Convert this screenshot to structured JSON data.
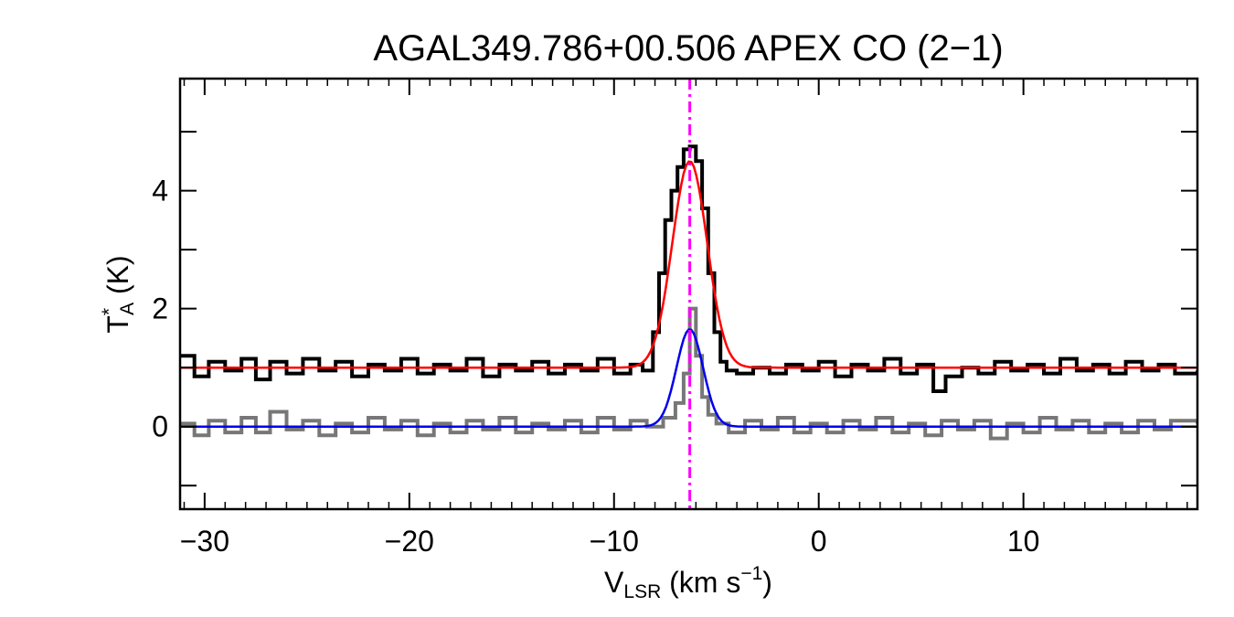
{
  "chart_data": {
    "type": "line",
    "title": "AGAL349.786+00.506  APEX CO (2−1)",
    "xlabel": {
      "main": "V",
      "sub": "LSR",
      "units_pre": " (km s",
      "sup": "−1",
      "units_post": ")"
    },
    "ylabel": {
      "main": "T",
      "sup": "*",
      "sub": "A",
      "units": " (K)"
    },
    "xlim": [
      -31.2,
      18.5
    ],
    "ylim": [
      -1.4,
      5.9
    ],
    "xticks": [
      {
        "value": -30,
        "label": "−30"
      },
      {
        "value": -20,
        "label": "−20"
      },
      {
        "value": -10,
        "label": "−10"
      },
      {
        "value": 0,
        "label": "0"
      },
      {
        "value": 10,
        "label": "10"
      }
    ],
    "yticks": [
      {
        "value": 0,
        "label": "0"
      },
      {
        "value": 2,
        "label": "2"
      },
      {
        "value": 4,
        "label": "4"
      }
    ],
    "grid": false,
    "vline": {
      "x": -6.3,
      "color": "#ff00ff",
      "style": "dash-dot"
    },
    "series": [
      {
        "role": "CO (2-1) spectrum, offset +1 K",
        "color": "#000000",
        "style": "steps",
        "width": 4,
        "points": [
          [
            -31.2,
            1.2
          ],
          [
            -30.5,
            0.85
          ],
          [
            -29.8,
            1.1
          ],
          [
            -29.0,
            0.95
          ],
          [
            -28.2,
            1.15
          ],
          [
            -27.5,
            0.8
          ],
          [
            -26.8,
            1.1
          ],
          [
            -26.0,
            0.9
          ],
          [
            -25.2,
            1.15
          ],
          [
            -24.4,
            0.95
          ],
          [
            -23.6,
            1.1
          ],
          [
            -22.8,
            0.85
          ],
          [
            -22.0,
            1.05
          ],
          [
            -21.2,
            0.95
          ],
          [
            -20.4,
            1.15
          ],
          [
            -19.6,
            0.9
          ],
          [
            -18.8,
            1.05
          ],
          [
            -18.0,
            0.95
          ],
          [
            -17.2,
            1.15
          ],
          [
            -16.4,
            0.85
          ],
          [
            -15.6,
            1.05
          ],
          [
            -14.8,
            0.95
          ],
          [
            -14.0,
            1.1
          ],
          [
            -13.2,
            0.9
          ],
          [
            -12.4,
            1.05
          ],
          [
            -11.6,
            0.95
          ],
          [
            -10.8,
            1.15
          ],
          [
            -10.0,
            0.9
          ],
          [
            -9.2,
            1.05
          ],
          [
            -8.6,
            0.95
          ],
          [
            -8.1,
            1.6
          ],
          [
            -7.8,
            2.6
          ],
          [
            -7.5,
            3.5
          ],
          [
            -7.2,
            4.0
          ],
          [
            -6.9,
            4.4
          ],
          [
            -6.6,
            4.7
          ],
          [
            -6.3,
            4.75
          ],
          [
            -6.0,
            4.5
          ],
          [
            -5.7,
            3.7
          ],
          [
            -5.4,
            2.6
          ],
          [
            -5.1,
            1.6
          ],
          [
            -4.8,
            1.1
          ],
          [
            -4.5,
            0.95
          ],
          [
            -4.0,
            0.9
          ],
          [
            -3.2,
            1.0
          ],
          [
            -2.4,
            0.9
          ],
          [
            -1.6,
            1.05
          ],
          [
            -0.8,
            0.95
          ],
          [
            0.0,
            1.1
          ],
          [
            0.8,
            0.85
          ],
          [
            1.6,
            1.05
          ],
          [
            2.4,
            0.95
          ],
          [
            3.2,
            1.15
          ],
          [
            4.0,
            0.9
          ],
          [
            4.8,
            1.05
          ],
          [
            5.6,
            0.6
          ],
          [
            6.2,
            0.85
          ],
          [
            7.0,
            1.0
          ],
          [
            7.8,
            0.9
          ],
          [
            8.6,
            1.1
          ],
          [
            9.4,
            0.95
          ],
          [
            10.2,
            1.05
          ],
          [
            11.0,
            0.9
          ],
          [
            11.8,
            1.15
          ],
          [
            12.6,
            0.95
          ],
          [
            13.4,
            1.05
          ],
          [
            14.2,
            0.9
          ],
          [
            15.0,
            1.1
          ],
          [
            15.8,
            0.95
          ],
          [
            16.6,
            1.05
          ],
          [
            17.4,
            0.9
          ],
          [
            18.5,
            0.95
          ]
        ]
      },
      {
        "role": "secondary spectrum",
        "color": "#777777",
        "style": "steps",
        "width": 4,
        "points": [
          [
            -31.2,
            0.05
          ],
          [
            -30.5,
            -0.15
          ],
          [
            -29.8,
            0.1
          ],
          [
            -29.0,
            -0.1
          ],
          [
            -28.2,
            0.15
          ],
          [
            -27.5,
            -0.1
          ],
          [
            -26.8,
            0.25
          ],
          [
            -26.0,
            -0.05
          ],
          [
            -25.2,
            0.1
          ],
          [
            -24.4,
            -0.15
          ],
          [
            -23.6,
            0.05
          ],
          [
            -22.8,
            -0.1
          ],
          [
            -22.0,
            0.15
          ],
          [
            -21.2,
            -0.05
          ],
          [
            -20.4,
            0.1
          ],
          [
            -19.6,
            -0.15
          ],
          [
            -18.8,
            0.05
          ],
          [
            -18.0,
            -0.1
          ],
          [
            -17.2,
            0.1
          ],
          [
            -16.4,
            -0.05
          ],
          [
            -15.6,
            0.15
          ],
          [
            -14.8,
            -0.1
          ],
          [
            -14.0,
            0.05
          ],
          [
            -13.2,
            -0.05
          ],
          [
            -12.4,
            0.1
          ],
          [
            -11.6,
            -0.1
          ],
          [
            -10.8,
            0.15
          ],
          [
            -10.0,
            -0.05
          ],
          [
            -9.2,
            0.1
          ],
          [
            -8.4,
            0.0
          ],
          [
            -7.6,
            0.15
          ],
          [
            -7.0,
            0.4
          ],
          [
            -6.6,
            0.9
          ],
          [
            -6.3,
            2.0
          ],
          [
            -6.0,
            1.2
          ],
          [
            -5.7,
            0.5
          ],
          [
            -5.4,
            0.2
          ],
          [
            -5.0,
            0.05
          ],
          [
            -4.4,
            -0.1
          ],
          [
            -3.6,
            0.1
          ],
          [
            -2.8,
            -0.05
          ],
          [
            -2.0,
            0.15
          ],
          [
            -1.2,
            -0.1
          ],
          [
            -0.4,
            0.05
          ],
          [
            0.4,
            -0.1
          ],
          [
            1.2,
            0.1
          ],
          [
            2.0,
            -0.05
          ],
          [
            2.8,
            0.15
          ],
          [
            3.6,
            -0.1
          ],
          [
            4.4,
            0.05
          ],
          [
            5.2,
            -0.15
          ],
          [
            6.0,
            0.1
          ],
          [
            6.8,
            -0.05
          ],
          [
            7.6,
            0.1
          ],
          [
            8.4,
            -0.2
          ],
          [
            9.2,
            0.05
          ],
          [
            10.0,
            -0.1
          ],
          [
            10.8,
            0.15
          ],
          [
            11.6,
            -0.05
          ],
          [
            12.4,
            0.1
          ],
          [
            13.2,
            -0.1
          ],
          [
            14.0,
            0.05
          ],
          [
            14.8,
            -0.1
          ],
          [
            15.6,
            0.1
          ],
          [
            16.4,
            -0.05
          ],
          [
            17.2,
            0.1
          ],
          [
            18.5,
            0.05
          ]
        ]
      },
      {
        "role": "Gaussian fit to CO spectrum",
        "color": "#ff0000",
        "style": "gaussian",
        "width": 2.5,
        "baseline": 1.0,
        "amplitude": 3.5,
        "center": -6.3,
        "sigma": 0.85
      },
      {
        "role": "Gaussian fit to secondary spectrum",
        "color": "#0000ee",
        "style": "gaussian",
        "width": 2.5,
        "baseline": 0.0,
        "amplitude": 1.65,
        "center": -6.3,
        "sigma": 0.65
      }
    ]
  }
}
